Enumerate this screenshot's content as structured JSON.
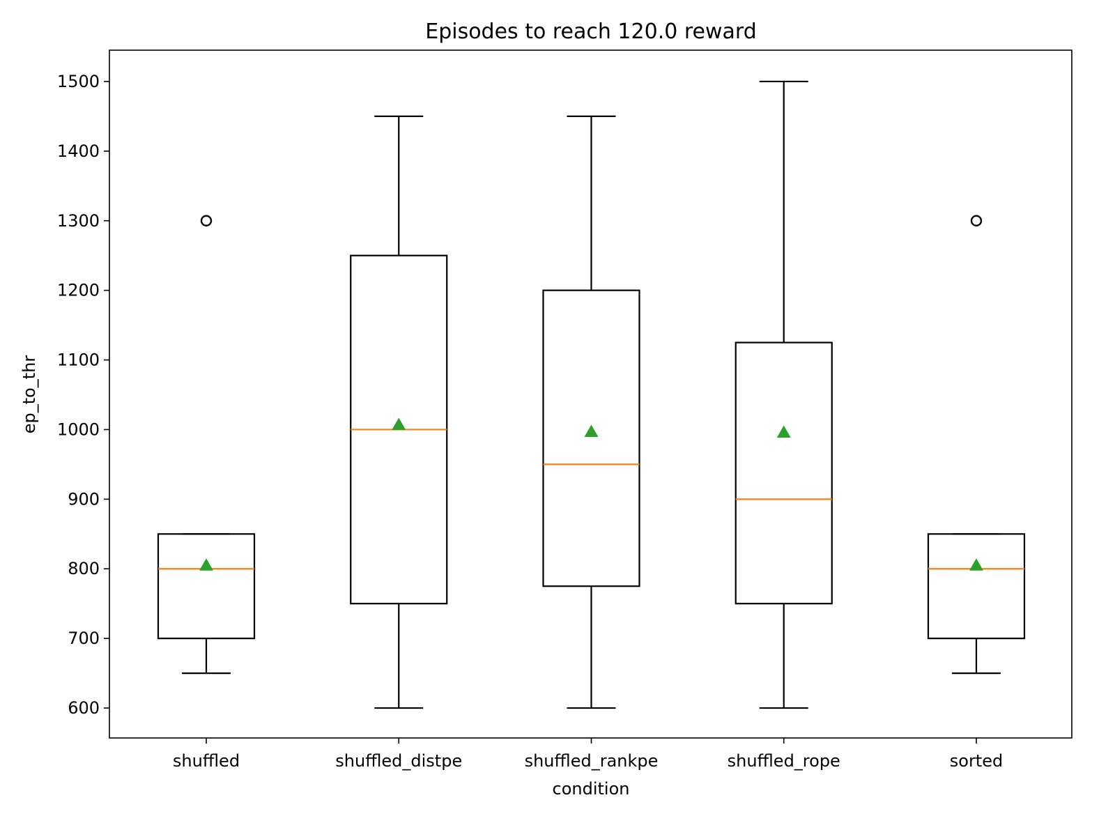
{
  "chart_data": {
    "type": "box",
    "title": "Episodes to reach 120.0 reward",
    "xlabel": "condition",
    "ylabel": "ep_to_thr",
    "ylim": [
      557,
      1545
    ],
    "yticks": [
      600,
      700,
      800,
      900,
      1000,
      1100,
      1200,
      1300,
      1400,
      1500
    ],
    "grid": false,
    "legend": "none",
    "colors": {
      "box": "#000000",
      "median": "#ff7f0e",
      "mean": "#2ca02c",
      "flier": "#000000"
    },
    "categories": [
      "shuffled",
      "shuffled_distpe",
      "shuffled_rankpe",
      "shuffled_rope",
      "sorted"
    ],
    "boxes": [
      {
        "category": "shuffled",
        "whisker_low": 650,
        "q1": 700,
        "median": 800,
        "q3": 850,
        "whisker_high": 850,
        "mean": 805,
        "outliers": [
          1300
        ]
      },
      {
        "category": "shuffled_distpe",
        "whisker_low": 600,
        "q1": 750,
        "median": 1000,
        "q3": 1250,
        "whisker_high": 1450,
        "mean": 1007,
        "outliers": []
      },
      {
        "category": "shuffled_rankpe",
        "whisker_low": 600,
        "q1": 775,
        "median": 950,
        "q3": 1200,
        "whisker_high": 1450,
        "mean": 997,
        "outliers": []
      },
      {
        "category": "shuffled_rope",
        "whisker_low": 600,
        "q1": 750,
        "median": 900,
        "q3": 1125,
        "whisker_high": 1500,
        "mean": 996,
        "outliers": []
      },
      {
        "category": "sorted",
        "whisker_low": 650,
        "q1": 700,
        "median": 800,
        "q3": 850,
        "whisker_high": 850,
        "mean": 805,
        "outliers": [
          1300
        ]
      }
    ]
  }
}
